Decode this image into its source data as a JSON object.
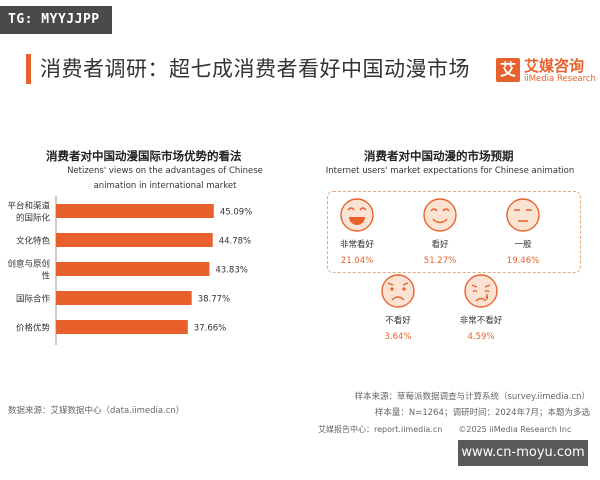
{
  "badge": "TG: MYYJJPP",
  "title": "消费者调研：超七成消费者看好中国动漫市场",
  "logo": {
    "mark": "艾",
    "name_cn": "艾媒咨询",
    "name_en": "iiMedia Research",
    "accent": "#e8612c"
  },
  "left_panel": {
    "title_cn": "消费者对中国动漫国际市场优势的看法",
    "subtitle_line1": "Netizens' views on the advantages of Chinese",
    "subtitle_line2": "animation in international market"
  },
  "right_panel": {
    "title_cn": "消费者对中国动漫的市场预期",
    "subtitle": "Internet users' market expectations for Chinese animation"
  },
  "chart_data": [
    {
      "type": "bar",
      "orientation": "horizontal",
      "categories": [
        "平台和渠道的国际化",
        "文化特色",
        "创意与原创性",
        "国际合作",
        "价格优势"
      ],
      "values": [
        45.09,
        44.78,
        43.83,
        38.77,
        37.66
      ],
      "value_labels": [
        "45.09%",
        "44.78%",
        "43.83%",
        "38.77%",
        "37.66%"
      ],
      "color": "#e8612c"
    },
    {
      "type": "pictogram",
      "categories": [
        "非常看好",
        "看好",
        "一般",
        "不看好",
        "非常不看好"
      ],
      "values": [
        21.04,
        51.27,
        19.46,
        3.64,
        4.59
      ],
      "value_labels": [
        "21.04%",
        "51.27%",
        "19.46%",
        "3.64%",
        "4.59%"
      ],
      "icons": [
        "very-happy-face-icon",
        "happy-face-icon",
        "neutral-face-icon",
        "sad-face-icon",
        "crying-face-icon"
      ],
      "colors": {
        "face_fill": "#fbe3d4",
        "stroke": "#e8612c"
      }
    }
  ],
  "footer": {
    "source_left": "数据来源：艾媒数据中心（data.iimedia.cn）",
    "sample_source": "样本来源：草莓派数据调查与计算系统（survey.iimedia.cn）",
    "sample_info": "样本量：N=1264；调研时间：2024年7月；本题为多选",
    "report_center": "艾媒报告中心：report.iimedia.cn",
    "copyright": "©2025  iiMedia Research  Inc"
  },
  "watermark": "www.cn-moyu.com"
}
